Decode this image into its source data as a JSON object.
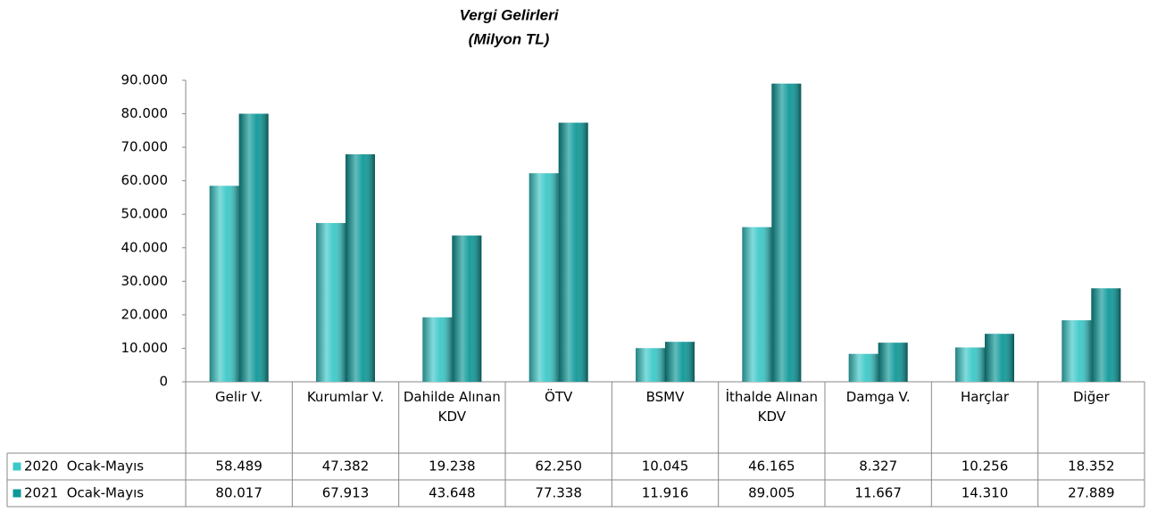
{
  "chart_data": {
    "type": "bar",
    "title": "Vergi Gelirleri",
    "subtitle": "(Milyon TL)",
    "categories": [
      "Gelir V.",
      "Kurumlar V.",
      "Dahilde Alınan KDV",
      "ÖTV",
      "BSMV",
      "İthalde Alınan KDV",
      "Damga V.",
      "Harçlar",
      "Diğer"
    ],
    "series": [
      {
        "name": "2020  Ocak-Mayıs",
        "color": "#3cc8c8",
        "values": [
          58489,
          47382,
          19238,
          62250,
          10045,
          46165,
          8327,
          10256,
          18352
        ],
        "value_labels": [
          "58.489",
          "47.382",
          "19.238",
          "62.250",
          "10.045",
          "46.165",
          "8.327",
          "10.256",
          "18.352"
        ]
      },
      {
        "name": "2021  Ocak-Mayıs",
        "color": "#0e9898",
        "values": [
          80017,
          67913,
          43648,
          77338,
          11916,
          89005,
          11667,
          14310,
          27889
        ],
        "value_labels": [
          "80.017",
          "67.913",
          "43.648",
          "77.338",
          "11.916",
          "89.005",
          "11.667",
          "14.310",
          "27.889"
        ]
      }
    ],
    "ylim": [
      0,
      90000
    ],
    "yticks": [
      0,
      {
        "value": 10000,
        "label": "10.000"
      },
      {
        "value": 20000,
        "label": "20.000"
      },
      {
        "value": 30000,
        "label": "30.000"
      },
      {
        "value": 40000,
        "label": "40.000"
      },
      {
        "value": 50000,
        "label": "50.000"
      },
      {
        "value": 60000,
        "label": "60.000"
      },
      {
        "value": 70000,
        "label": "70.000"
      },
      {
        "value": 80000,
        "label": "80.000"
      },
      {
        "value": 90000,
        "label": "90.000"
      }
    ],
    "grid": false
  }
}
